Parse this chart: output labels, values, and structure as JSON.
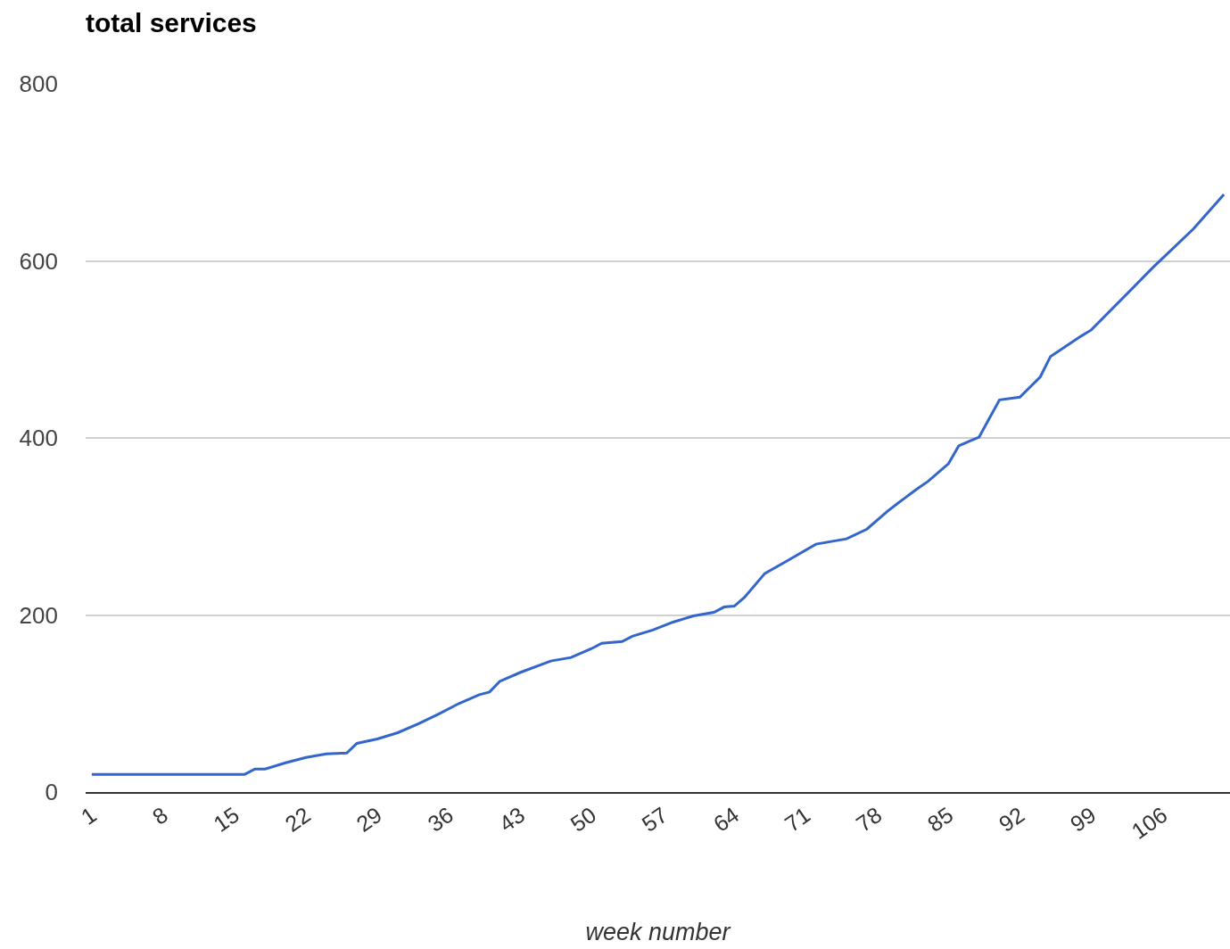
{
  "chart_data": {
    "type": "line",
    "title": "total services",
    "xlabel": "week number",
    "x": [
      1,
      16,
      17,
      18,
      20,
      22,
      24,
      26,
      27,
      29,
      31,
      33,
      35,
      37,
      39,
      40,
      41,
      43,
      46,
      48,
      50,
      51,
      53,
      54,
      56,
      58,
      60,
      62,
      63,
      64,
      65,
      67,
      69,
      72,
      75,
      77,
      79,
      80,
      82,
      83,
      85,
      86,
      87,
      88,
      90,
      92,
      94,
      95,
      98,
      99,
      105,
      109,
      112
    ],
    "series": [
      {
        "color": "#3366cc",
        "values": [
          20,
          20,
          26,
          26,
          33,
          39,
          43,
          44,
          55,
          60,
          67,
          77,
          88,
          100,
          110,
          113,
          125,
          135,
          148,
          152,
          162,
          168,
          170,
          176,
          183,
          192,
          199,
          203,
          209,
          210,
          220,
          247,
          260,
          280,
          286,
          297,
          317,
          326,
          343,
          351,
          371,
          391,
          396,
          401,
          443,
          446,
          469,
          492,
          515,
          522,
          592,
          636,
          675
        ]
      }
    ],
    "xlim": [
      0.4,
      112.6
    ],
    "xticks": [
      1,
      8,
      15,
      22,
      29,
      36,
      43,
      50,
      57,
      64,
      71,
      78,
      85,
      92,
      99,
      106
    ],
    "ylim": [
      0,
      800
    ],
    "yticks": [
      0,
      200,
      400,
      600,
      800
    ],
    "grid": "y",
    "marker": "none",
    "line_style": "solid"
  }
}
